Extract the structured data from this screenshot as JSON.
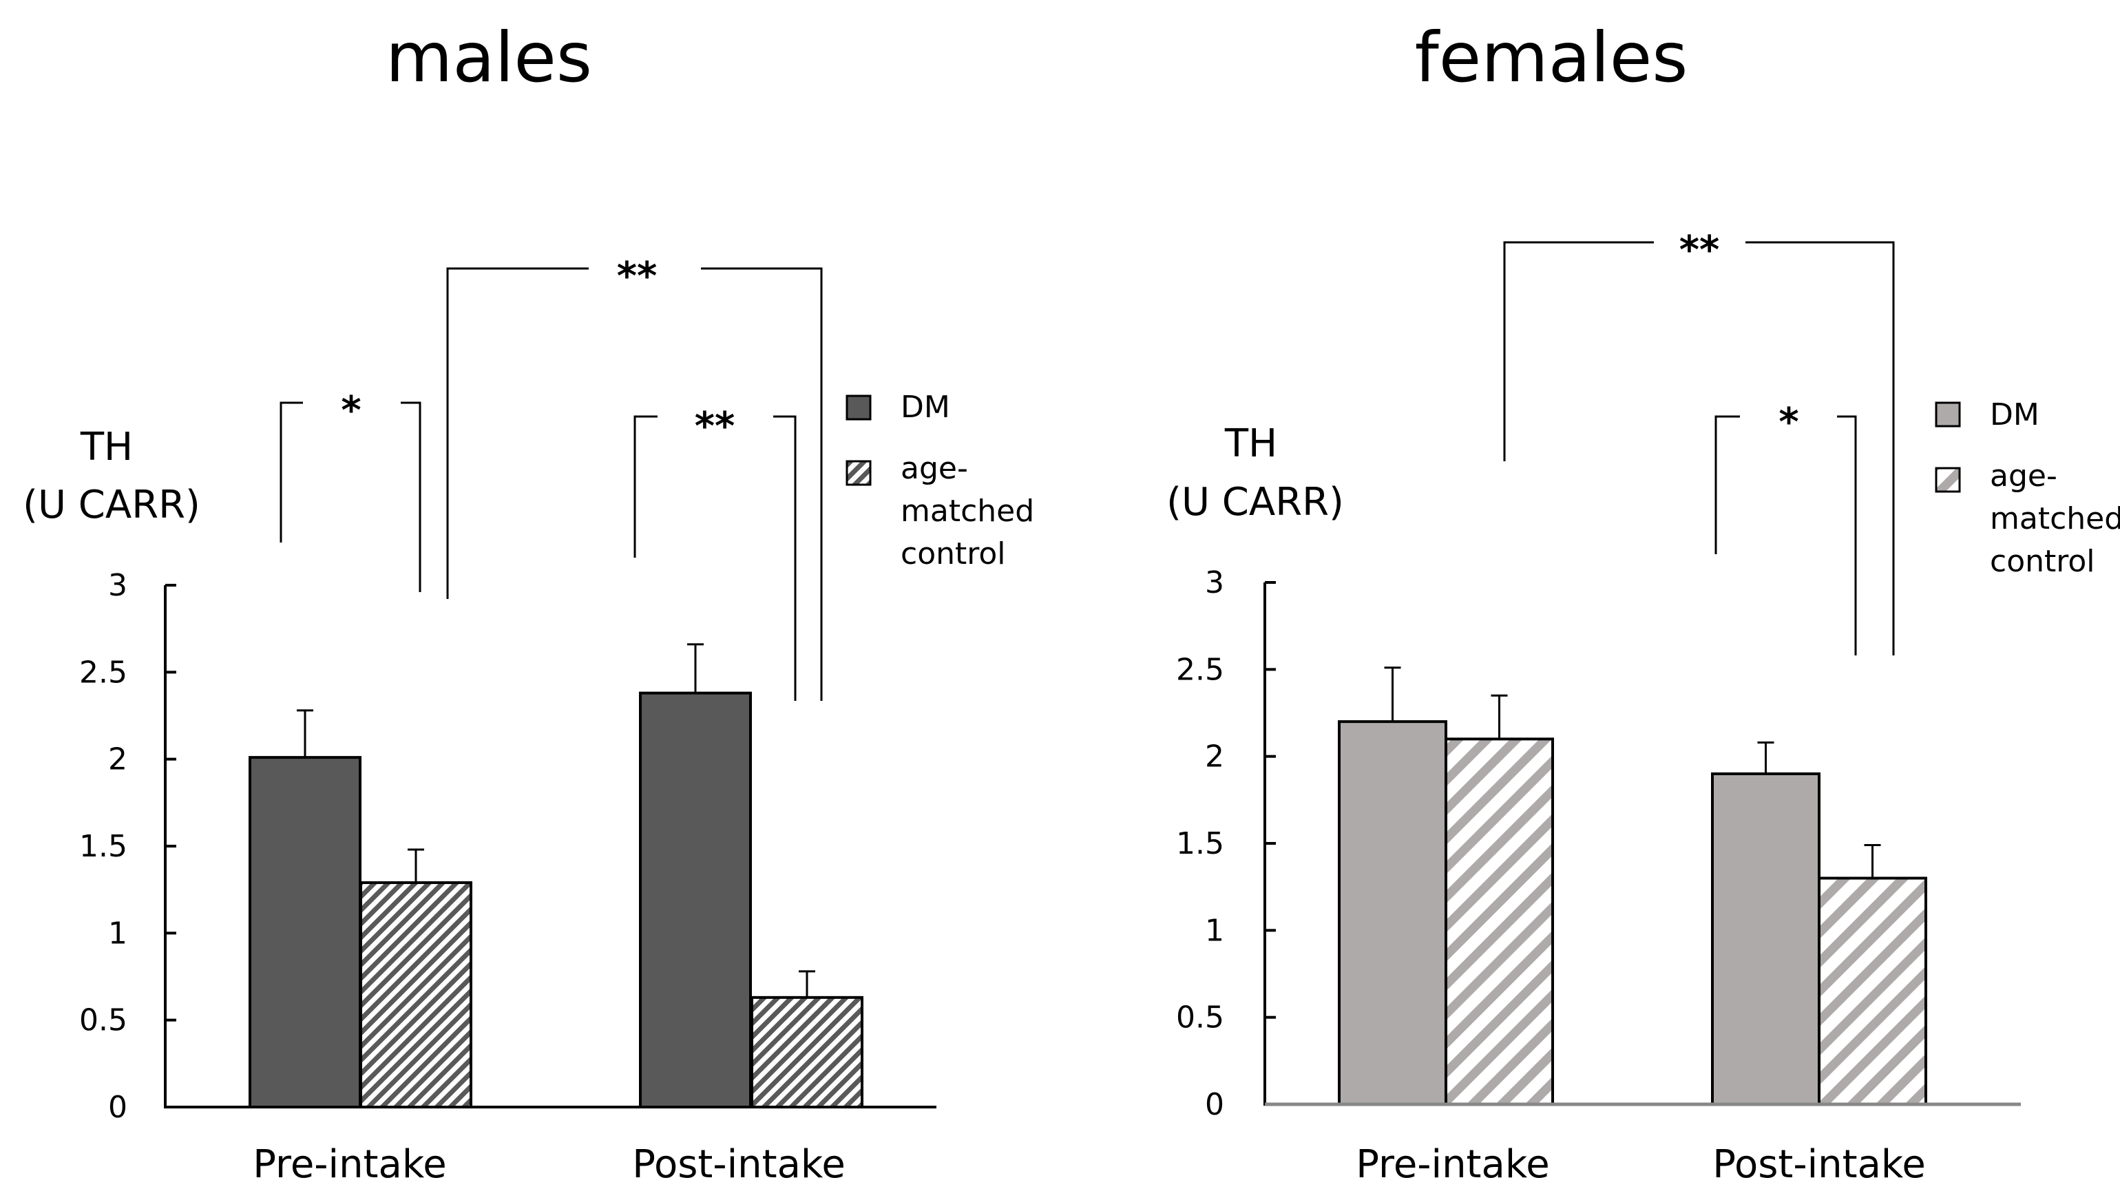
{
  "chart_data": [
    {
      "type": "bar",
      "title": "males",
      "ylabel_line1": "TH",
      "ylabel_line2": "(U CARR)",
      "xlabel": "",
      "categories": [
        "Pre-intake",
        "Post-intake"
      ],
      "ylim": [
        0,
        3
      ],
      "yticks": [
        "0",
        "0.5",
        "1",
        "1.5",
        "2",
        "2.5",
        "3"
      ],
      "series": [
        {
          "name": "DM",
          "values": [
            2.01,
            2.38
          ],
          "errors": [
            0.27,
            0.28
          ],
          "color": "#595959",
          "pattern": "solid"
        },
        {
          "name": "age-matched control",
          "values": [
            1.29,
            0.63
          ],
          "errors": [
            0.19,
            0.15
          ],
          "color": "#595959",
          "pattern": "hatch"
        }
      ],
      "legend": {
        "dm": "DM",
        "ctrl_line1": "age-",
        "ctrl_line2": "matched",
        "ctrl_line3": "control",
        "position": "right"
      },
      "significance": [
        {
          "label": "*",
          "between": "Pre-intake DM vs age-matched control"
        },
        {
          "label": "**",
          "between": "Post-intake DM vs age-matched control"
        },
        {
          "label": "**",
          "between": "age-matched control Pre-intake vs Post-intake"
        }
      ],
      "grid": false
    },
    {
      "type": "bar",
      "title": "females",
      "ylabel_line1": "TH",
      "ylabel_line2": "(U CARR)",
      "xlabel": "",
      "categories": [
        "Pre-intake",
        "Post-intake"
      ],
      "ylim": [
        0,
        3
      ],
      "yticks": [
        "0",
        "0.5",
        "1",
        "1.5",
        "2",
        "2.5",
        "3"
      ],
      "series": [
        {
          "name": "DM",
          "values": [
            2.2,
            1.9
          ],
          "errors": [
            0.31,
            0.18
          ],
          "color": "#aeaaaa",
          "pattern": "solid"
        },
        {
          "name": "age-matched control",
          "values": [
            2.1,
            1.3
          ],
          "errors": [
            0.25,
            0.19
          ],
          "color": "#aeaaaa",
          "pattern": "hatch"
        }
      ],
      "legend": {
        "dm": "DM",
        "ctrl_line1": "age-",
        "ctrl_line2": "matched",
        "ctrl_line3": "control",
        "position": "right"
      },
      "significance": [
        {
          "label": "*",
          "between": "Post-intake DM vs age-matched control"
        },
        {
          "label": "**",
          "between": "age-matched control Pre-intake vs Post-intake"
        }
      ],
      "grid": false
    }
  ]
}
